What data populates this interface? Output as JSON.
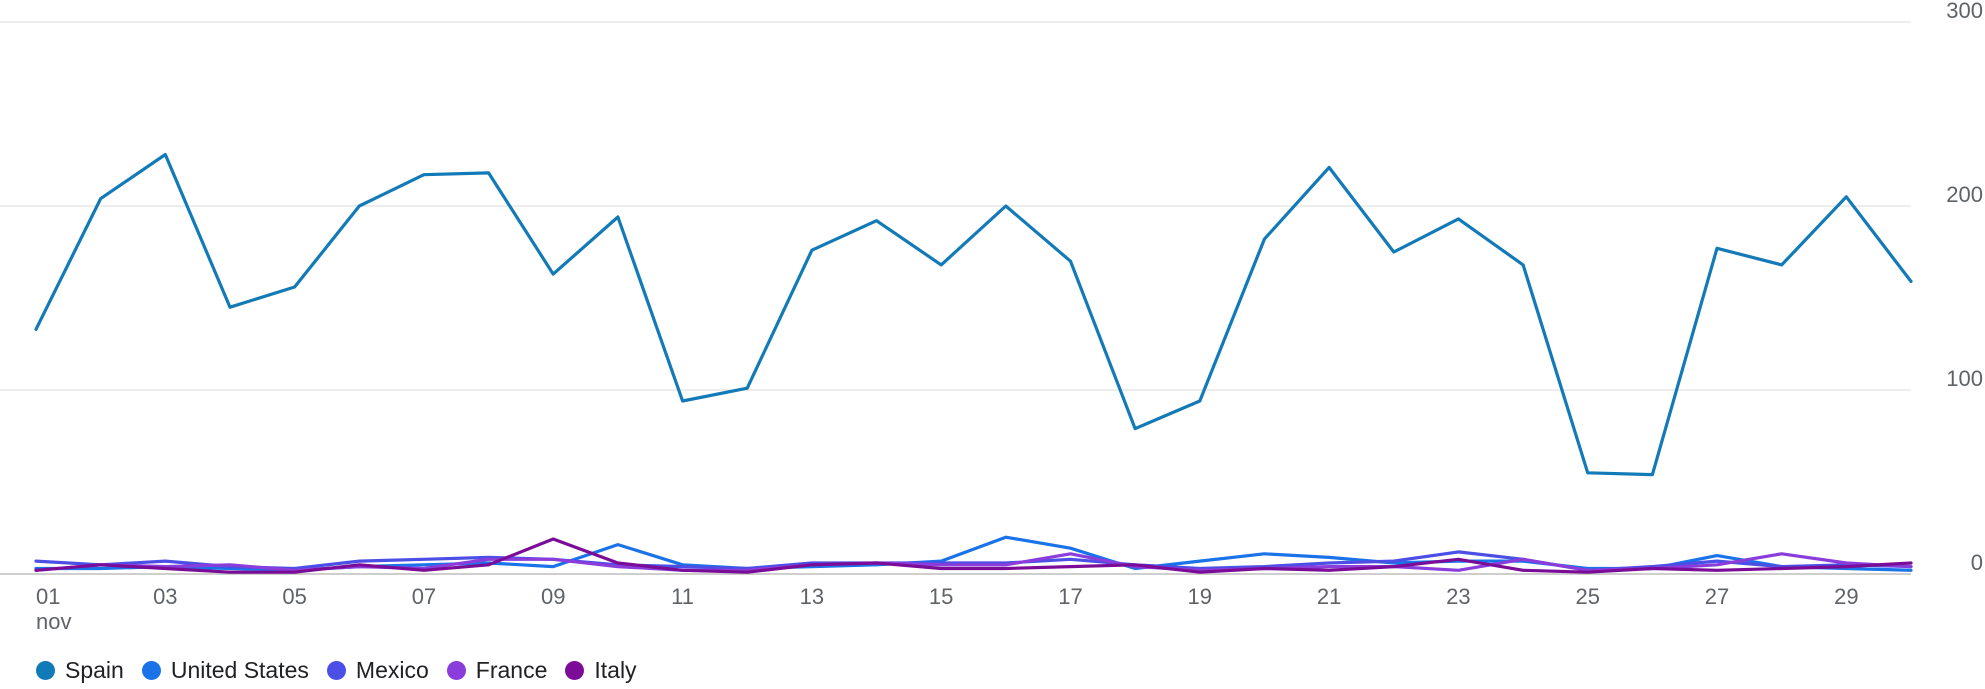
{
  "chart_data": {
    "type": "line",
    "title": "",
    "xlabel": "",
    "ylabel": "",
    "x_tick_labels": [
      "01",
      "03",
      "05",
      "07",
      "09",
      "11",
      "13",
      "15",
      "17",
      "19",
      "21",
      "23",
      "25",
      "27",
      "29"
    ],
    "x_month_label": "nov",
    "y_ticks": [
      0,
      100,
      200,
      300
    ],
    "ylim": [
      0,
      300
    ],
    "y_axis_side": "right",
    "grid": true,
    "legend_position": "bottom-left",
    "x": [
      1,
      2,
      3,
      4,
      5,
      6,
      7,
      8,
      9,
      10,
      11,
      12,
      13,
      14,
      15,
      16,
      17,
      18,
      19,
      20,
      21,
      22,
      23,
      24,
      25,
      26,
      27,
      28,
      29,
      30
    ],
    "series": [
      {
        "name": "Spain",
        "color": "#137ab8",
        "values": [
          133,
          204,
          228,
          145,
          156,
          200,
          217,
          218,
          163,
          194,
          94,
          101,
          176,
          192,
          168,
          200,
          170,
          79,
          94,
          182,
          221,
          175,
          193,
          168,
          55,
          54,
          177,
          168,
          205,
          159
        ]
      },
      {
        "name": "United States",
        "color": "#1a73e8",
        "values": [
          3,
          3,
          4,
          3,
          2,
          4,
          5,
          6,
          4,
          16,
          5,
          3,
          4,
          5,
          7,
          20,
          14,
          3,
          7,
          11,
          9,
          6,
          7,
          7,
          3,
          3,
          10,
          4,
          3,
          2
        ]
      },
      {
        "name": "Mexico",
        "color": "#4b4fe5",
        "values": [
          7,
          5,
          7,
          4,
          3,
          7,
          8,
          9,
          8,
          5,
          4,
          3,
          6,
          6,
          6,
          6,
          8,
          5,
          3,
          4,
          6,
          7,
          12,
          8,
          2,
          4,
          7,
          4,
          5,
          4
        ]
      },
      {
        "name": "France",
        "color": "#8a3ddb",
        "values": [
          2,
          5,
          4,
          5,
          2,
          4,
          3,
          8,
          8,
          4,
          2,
          2,
          5,
          6,
          5,
          5,
          11,
          4,
          2,
          3,
          4,
          4,
          2,
          8,
          2,
          3,
          5,
          11,
          6,
          4
        ]
      },
      {
        "name": "Italy",
        "color": "#7b0c98",
        "values": [
          2,
          5,
          3,
          1,
          1,
          5,
          2,
          5,
          19,
          6,
          2,
          1,
          5,
          6,
          3,
          3,
          4,
          5,
          1,
          3,
          2,
          4,
          8,
          2,
          1,
          3,
          2,
          3,
          4,
          6
        ]
      }
    ]
  }
}
